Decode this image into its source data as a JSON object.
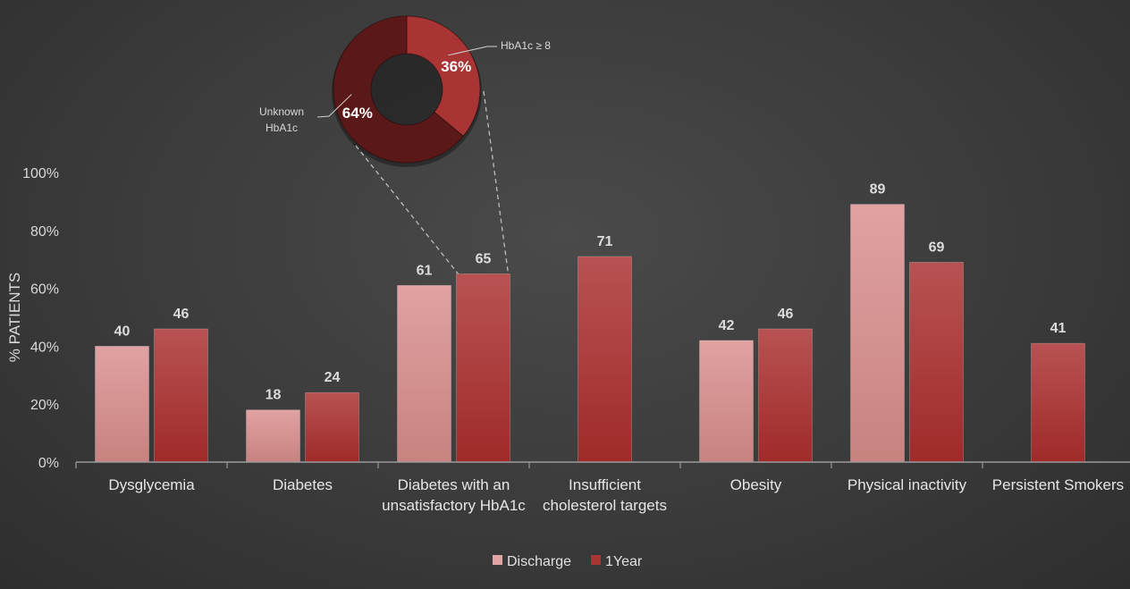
{
  "chart_data": [
    {
      "type": "bar",
      "ylabel": "% PATIENTS",
      "ylim": [
        0,
        100
      ],
      "yticks": [
        "0%",
        "20%",
        "40%",
        "60%",
        "80%",
        "100%"
      ],
      "categories": [
        [
          "Dysglycemia"
        ],
        [
          "Diabetes"
        ],
        [
          "Diabetes with an",
          "unsatisfactory HbA1c"
        ],
        [
          "Insufficient",
          "cholesterol targets"
        ],
        [
          "Obesity"
        ],
        [
          "Physical inactivity"
        ],
        [
          "Persistent Smokers"
        ]
      ],
      "series": [
        {
          "name": "Discharge",
          "values": [
            40,
            18,
            61,
            null,
            42,
            89,
            null
          ]
        },
        {
          "name": "1Year",
          "values": [
            46,
            24,
            65,
            71,
            46,
            69,
            41
          ]
        }
      ],
      "legend": "bottom",
      "grid": false,
      "colors": {
        "Discharge": "#e1a4a4",
        "1Year": "#a83434"
      }
    },
    {
      "type": "pie",
      "variant": "donut",
      "slices": [
        {
          "label": "HbA1c ≥ 8",
          "value": 36,
          "display": "36%",
          "color": "#a83434"
        },
        {
          "label": "Unknown HbA1c",
          "label_lines": [
            "Unknown",
            "HbA1c"
          ],
          "value": 64,
          "display": "64%",
          "color": "#5e1a1a"
        }
      ],
      "linked_to": {
        "category_index": 2,
        "series": "1Year"
      }
    }
  ]
}
